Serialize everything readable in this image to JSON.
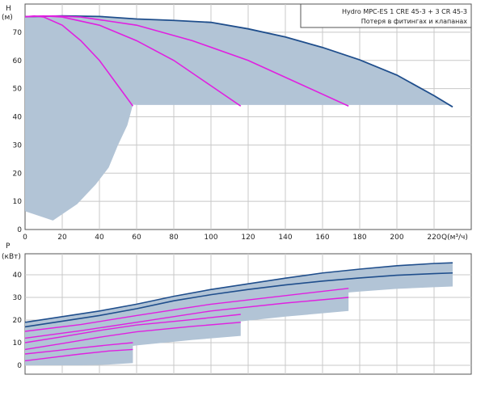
{
  "legend": {
    "line1": "Hydro MPC-ES 1 CRE 45-3  +  3 CR 45-3",
    "line2": "Потеря в фитингах и клапанах"
  },
  "chart_data": [
    {
      "type": "line",
      "panel": "head",
      "ylabel": "H",
      "yunit": "(м)",
      "xlabel": "Q(м³/ч)",
      "xlim": [
        0,
        240
      ],
      "ylim": [
        0,
        80
      ],
      "xticks": [
        0,
        20,
        40,
        60,
        80,
        100,
        120,
        140,
        160,
        180,
        200,
        220
      ],
      "yticks": [
        0,
        10,
        20,
        30,
        40,
        50,
        60,
        70
      ],
      "grid": true,
      "legend_position": "top-right",
      "operating_area": [
        [
          0,
          75.5
        ],
        [
          20,
          75.8
        ],
        [
          40,
          75.6
        ],
        [
          60,
          74.7
        ],
        [
          80,
          74.2
        ],
        [
          100,
          73.5
        ],
        [
          120,
          71.2
        ],
        [
          140,
          68.3
        ],
        [
          160,
          64.6
        ],
        [
          180,
          60.2
        ],
        [
          200,
          54.8
        ],
        [
          220,
          47.5
        ],
        [
          228,
          44.2
        ],
        [
          60,
          44.2
        ],
        [
          58,
          44.3
        ],
        [
          55,
          37
        ],
        [
          50,
          30
        ],
        [
          45,
          22
        ],
        [
          38,
          16
        ],
        [
          28,
          9
        ],
        [
          15,
          3.2
        ],
        [
          0,
          6.5
        ]
      ],
      "series": [
        {
          "color": "#1f4e8c",
          "points": [
            [
              0,
              75.5
            ],
            [
              20,
              75.8
            ],
            [
              40,
              75.6
            ],
            [
              60,
              74.7
            ],
            [
              80,
              74.2
            ],
            [
              100,
              73.5
            ],
            [
              120,
              71.2
            ],
            [
              140,
              68.3
            ],
            [
              160,
              64.6
            ],
            [
              180,
              60.2
            ],
            [
              200,
              54.8
            ],
            [
              220,
              47.5
            ],
            [
              230,
              43.5
            ]
          ]
        },
        {
          "color": "#e020e0",
          "points": [
            [
              0,
              75.5
            ],
            [
              5,
              75.8
            ],
            [
              10,
              75.4
            ],
            [
              20,
              72.5
            ],
            [
              30,
              67
            ],
            [
              40,
              60
            ],
            [
              50,
              51
            ],
            [
              58,
              43.8
            ]
          ]
        },
        {
          "color": "#e020e0",
          "points": [
            [
              0,
              75.5
            ],
            [
              10,
              75.8
            ],
            [
              20,
              75.4
            ],
            [
              40,
              72.5
            ],
            [
              60,
              67
            ],
            [
              80,
              60
            ],
            [
              100,
              51
            ],
            [
              116,
              43.8
            ]
          ]
        },
        {
          "color": "#e020e0",
          "points": [
            [
              0,
              75.5
            ],
            [
              15,
              75.8
            ],
            [
              30,
              75.4
            ],
            [
              60,
              72.5
            ],
            [
              90,
              67
            ],
            [
              120,
              60
            ],
            [
              150,
              51
            ],
            [
              174,
              43.8
            ]
          ]
        }
      ]
    },
    {
      "type": "line",
      "panel": "power",
      "ylabel": "P",
      "yunit": "(кВт)",
      "xlim": [
        0,
        240
      ],
      "ylim": [
        0,
        45
      ],
      "yticks": [
        0,
        10,
        20,
        30,
        40
      ],
      "grid": true,
      "series": [
        {
          "color": "#1f4e8c",
          "points": [
            [
              0,
              19
            ],
            [
              20,
              21.5
            ],
            [
              40,
              24
            ],
            [
              60,
              27
            ],
            [
              80,
              30.5
            ],
            [
              100,
              33.5
            ],
            [
              120,
              36
            ],
            [
              140,
              38.5
            ],
            [
              160,
              40.8
            ],
            [
              180,
              42.5
            ],
            [
              200,
              44
            ],
            [
              220,
              45
            ],
            [
              230,
              45.3
            ]
          ]
        },
        {
          "color": "#1f4e8c",
          "points": [
            [
              0,
              17
            ],
            [
              20,
              19.5
            ],
            [
              40,
              22
            ],
            [
              60,
              25
            ],
            [
              80,
              28.5
            ],
            [
              100,
              31.2
            ],
            [
              120,
              33.5
            ],
            [
              140,
              35.5
            ],
            [
              160,
              37.2
            ],
            [
              180,
              38.6
            ],
            [
              200,
              39.8
            ],
            [
              220,
              40.5
            ],
            [
              230,
              40.8
            ]
          ]
        },
        {
          "color": "#e020e0",
          "points": [
            [
              0,
              15
            ],
            [
              30,
              18
            ],
            [
              60,
              22
            ],
            [
              100,
              27
            ],
            [
              140,
              30.8
            ],
            [
              174,
              34
            ]
          ]
        },
        {
          "color": "#e020e0",
          "points": [
            [
              0,
              12
            ],
            [
              30,
              15.3
            ],
            [
              60,
              19
            ],
            [
              100,
              24
            ],
            [
              140,
              27.5
            ],
            [
              174,
              30
            ]
          ]
        },
        {
          "color": "#e020e0",
          "points": [
            [
              0,
              10
            ],
            [
              20,
              12.6
            ],
            [
              40,
              15.4
            ],
            [
              60,
              17.8
            ],
            [
              90,
              20.2
            ],
            [
              116,
              22.5
            ]
          ]
        },
        {
          "color": "#e020e0",
          "points": [
            [
              0,
              7
            ],
            [
              20,
              9.6
            ],
            [
              40,
              12.4
            ],
            [
              60,
              14.8
            ],
            [
              90,
              17.2
            ],
            [
              116,
              19
            ]
          ]
        },
        {
          "color": "#e020e0",
          "points": [
            [
              0,
              5
            ],
            [
              15,
              6.3
            ],
            [
              30,
              7.7
            ],
            [
              45,
              9
            ],
            [
              58,
              10
            ]
          ]
        },
        {
          "color": "#e020e0",
          "points": [
            [
              0,
              2
            ],
            [
              15,
              3.5
            ],
            [
              30,
              5
            ],
            [
              45,
              6.3
            ],
            [
              58,
              7
            ]
          ]
        }
      ]
    }
  ]
}
